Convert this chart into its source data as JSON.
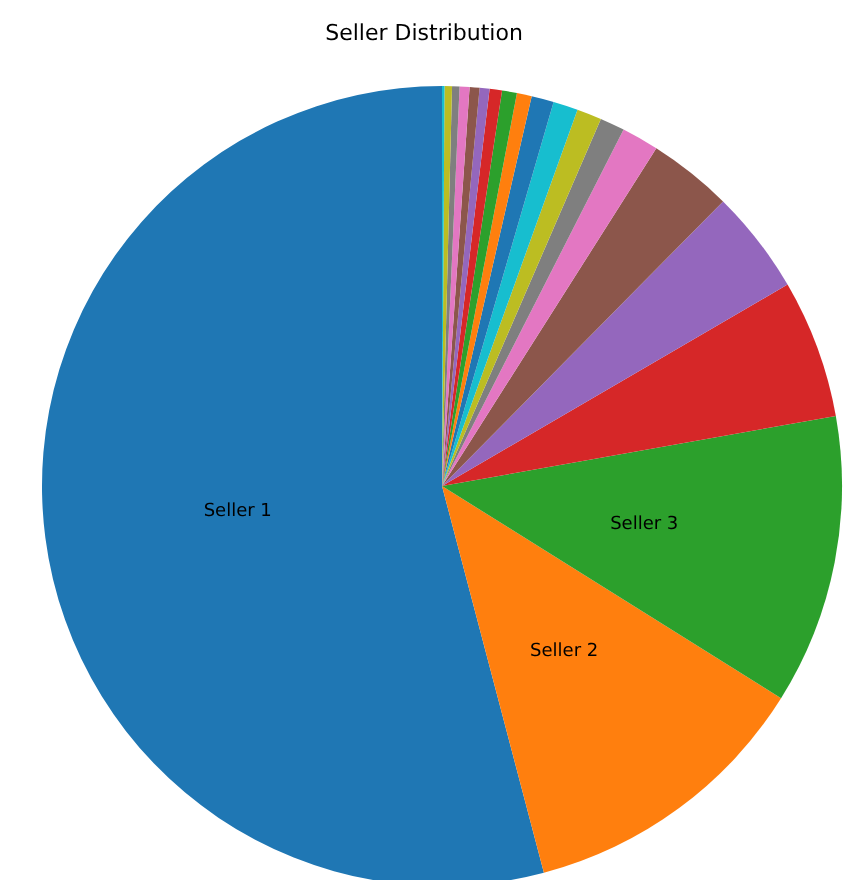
{
  "chart_data": {
    "type": "pie",
    "title": "Seller Distribution",
    "categories": [
      "Seller 1",
      "Seller 2",
      "Seller 3",
      null,
      null,
      null,
      null,
      null,
      null,
      null,
      null,
      null,
      null,
      null,
      null,
      null,
      null,
      null,
      null,
      null
    ],
    "values": [
      54.1,
      12.0,
      11.7,
      5.6,
      4.2,
      3.4,
      1.5,
      1.0,
      1.0,
      1.0,
      0.9,
      0.6,
      0.6,
      0.5,
      0.4,
      0.4,
      0.4,
      0.3,
      0.3,
      0.1
    ],
    "colors": [
      "#1f77b4",
      "#ff7f0e",
      "#2ca02c",
      "#d62728",
      "#9467bd",
      "#8c564b",
      "#e377c2",
      "#7f7f7f",
      "#bcbd22",
      "#17becf",
      "#1f77b4",
      "#ff7f0e",
      "#2ca02c",
      "#d62728",
      "#9467bd",
      "#8c564b",
      "#e377c2",
      "#7f7f7f",
      "#bcbd22",
      "#17becf"
    ]
  }
}
